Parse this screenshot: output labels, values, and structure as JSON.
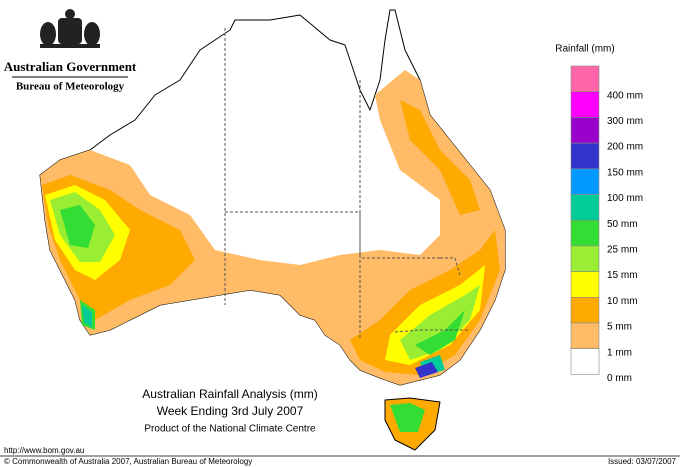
{
  "header": {
    "government": "Australian Government",
    "agency": "Bureau of Meteorology"
  },
  "legend": {
    "title": "Rainfall (mm)",
    "entries": [
      {
        "color": "#ff66aa",
        "label": null
      },
      {
        "color": "#ff00ff",
        "label": "400 mm"
      },
      {
        "color": "#9900cc",
        "label": "300 mm"
      },
      {
        "color": "#3333cc",
        "label": "200 mm"
      },
      {
        "color": "#0099ff",
        "label": "150 mm"
      },
      {
        "color": "#00cc99",
        "label": "100 mm"
      },
      {
        "color": "#33dd33",
        "label": "50 mm"
      },
      {
        "color": "#99ee33",
        "label": "25 mm"
      },
      {
        "color": "#ffff00",
        "label": "15 mm"
      },
      {
        "color": "#ffaa00",
        "label": "10 mm"
      },
      {
        "color": "#ffbb66",
        "label": "5 mm"
      },
      {
        "color": "#ffffff",
        "label": "1 mm"
      }
    ],
    "bottom_label": "0 mm"
  },
  "map": {
    "title": "Australian Rainfall Analysis (mm)",
    "subtitle": "Week Ending 3rd July 2007",
    "note": "Product of the National Climate Centre"
  },
  "footer": {
    "url": "http://www.bom.gov.au",
    "copyright": "© Commonwealth of Australia 2007, Australian Bureau of Meteorology",
    "issued": "Issued: 03/07/2007"
  }
}
